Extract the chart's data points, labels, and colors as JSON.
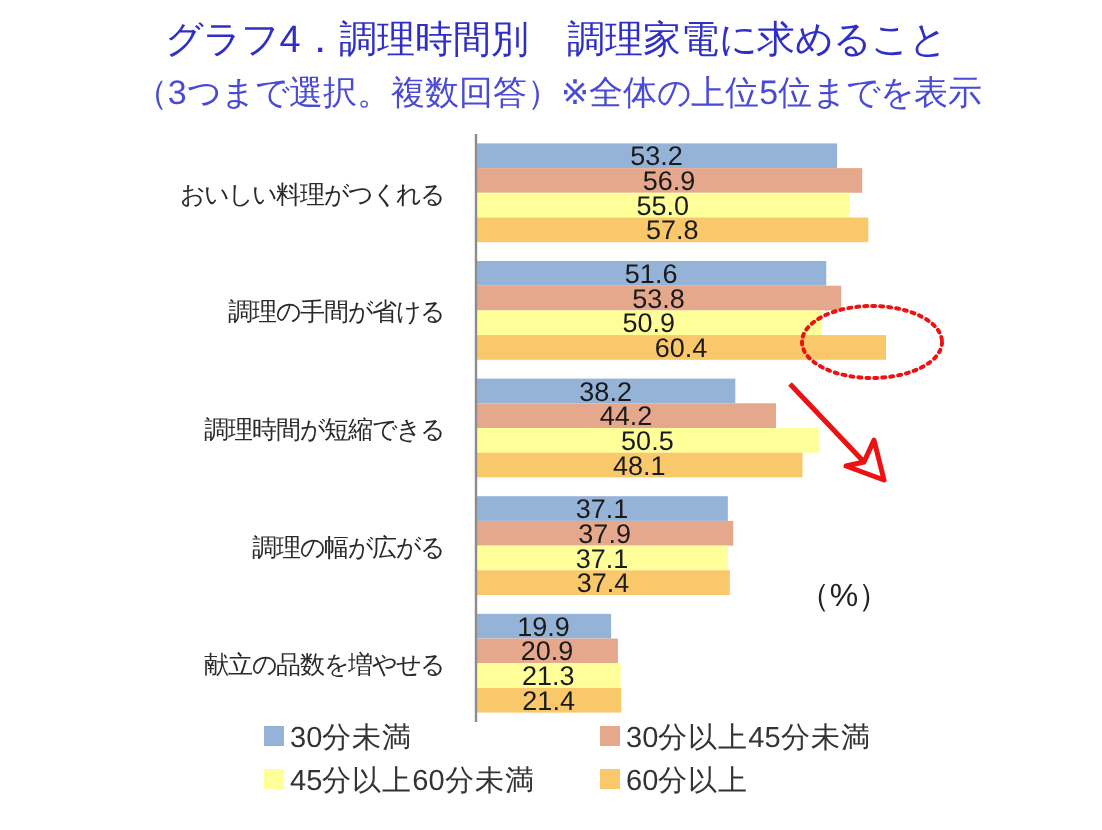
{
  "chart_data": {
    "type": "bar",
    "orientation": "horizontal",
    "title": "グラフ4．調理時間別　調理家電に求めること",
    "subtitle": "（3つまで選択。複数回答）※全体の上位5位までを表示",
    "categories": [
      "おいしい料理がつくれる",
      "調理の手間が省ける",
      "調理時間が短縮できる",
      "調理の幅が広がる",
      "献立の品数を増やせる"
    ],
    "series": [
      {
        "name": "30分未満",
        "color": "#95b3d7",
        "values": [
          53.2,
          51.6,
          38.2,
          37.1,
          19.9
        ],
        "value_labels": [
          "53.2",
          "51.6",
          "38.2",
          "37.1",
          "19.9"
        ]
      },
      {
        "name": "30分以上45分未満",
        "color": "#e6a88c",
        "values": [
          56.9,
          53.8,
          44.2,
          37.9,
          20.9
        ],
        "value_labels": [
          "56.9",
          "53.8",
          "44.2",
          "37.9",
          "20.9"
        ]
      },
      {
        "name": "45分以上60分未満",
        "color": "#ffff99",
        "values": [
          55.0,
          50.9,
          50.5,
          37.1,
          21.3
        ],
        "value_labels": [
          "55.0",
          "50.9",
          "50.5",
          "37.1",
          "21.3"
        ]
      },
      {
        "name": "60分以上",
        "color": "#f9c86a",
        "values": [
          57.8,
          60.4,
          48.1,
          37.4,
          21.4
        ],
        "value_labels": [
          "57.8",
          "60.4",
          "48.1",
          "37.4",
          "21.4"
        ]
      }
    ],
    "legend": "bottom",
    "tick_labels": "y",
    "annotations": [
      "（%）"
    ]
  }
}
